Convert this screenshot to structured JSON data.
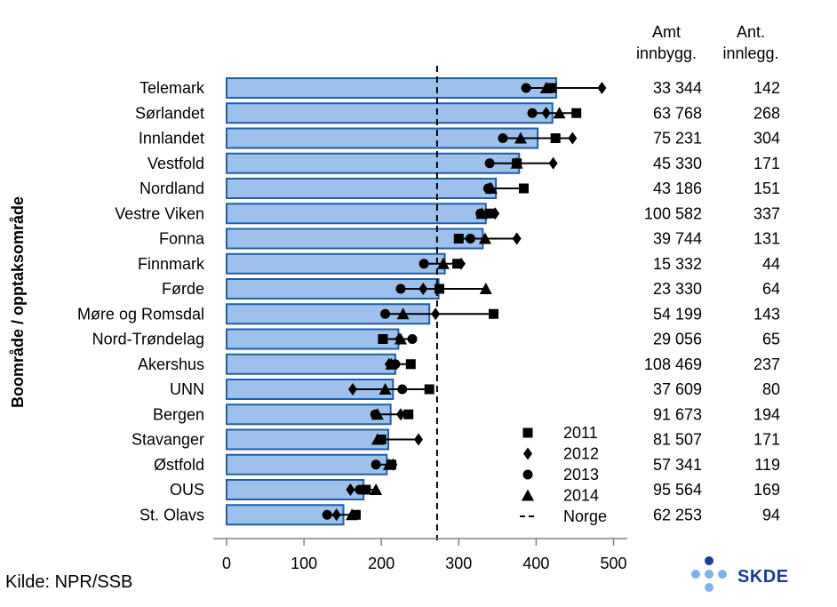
{
  "chart_data": {
    "type": "bar",
    "ylabel": "Boområde / opptaksområde",
    "xlim": [
      0,
      500
    ],
    "xticks": [
      0,
      100,
      200,
      300,
      400,
      500
    ],
    "reference_line": {
      "name": "Norge",
      "value": 272,
      "style": "dashed"
    },
    "table_headers": [
      [
        "Amt",
        "innbygg."
      ],
      [
        "Ant.",
        "innlegg."
      ]
    ],
    "categories": [
      "Telemark",
      "Sørlandet",
      "Innlandet",
      "Vestfold",
      "Nordland",
      "Vestre Viken",
      "Fonna",
      "Finnmark",
      "Førde",
      "Møre og Romsdal",
      "Nord-Trøndelag",
      "Akershus",
      "UNN",
      "Bergen",
      "Stavanger",
      "Østfold",
      "OUS",
      "St. Olavs"
    ],
    "values": [
      426,
      421,
      402,
      378,
      348,
      335,
      331,
      282,
      274,
      262,
      222,
      218,
      215,
      212,
      209,
      207,
      177,
      151
    ],
    "amt_innbygg": [
      "33 344",
      "63 768",
      "75 231",
      "45 330",
      "43 186",
      "100 582",
      "39 744",
      "15 332",
      "23 330",
      "54 199",
      "29 056",
      "108 469",
      "37 609",
      "91 673",
      "81 507",
      "57 341",
      "95 564",
      "62 253"
    ],
    "ant_innlegg": [
      "142",
      "268",
      "304",
      "171",
      "151",
      "337",
      "131",
      "44",
      "64",
      "143",
      "65",
      "237",
      "80",
      "194",
      "171",
      "119",
      "169",
      "94"
    ],
    "series": [
      {
        "name": "2011",
        "marker": "square",
        "values": [
          420,
          452,
          425,
          375,
          384,
          340,
          300,
          298,
          275,
          345,
          202,
          238,
          262,
          235,
          200,
          213,
          180,
          167
        ]
      },
      {
        "name": "2012",
        "marker": "diamond",
        "values": [
          485,
          413,
          447,
          422,
          340,
          347,
          375,
          303,
          254,
          270,
          223,
          210,
          163,
          225,
          248,
          215,
          160,
          142
        ]
      },
      {
        "name": "2013",
        "marker": "circle",
        "values": [
          387,
          395,
          357,
          340,
          338,
          328,
          315,
          255,
          225,
          205,
          240,
          218,
          227,
          192,
          198,
          193,
          172,
          130
        ]
      },
      {
        "name": "2014",
        "marker": "triangle",
        "values": [
          413,
          430,
          380,
          375,
          342,
          330,
          334,
          280,
          335,
          228,
          225,
          213,
          205,
          195,
          195,
          210,
          193,
          162
        ]
      }
    ],
    "colors": {
      "bar_fill": "#9dc1ea",
      "bar_stroke": "#1f5fa8",
      "marker": "#000000"
    }
  },
  "source": "Kilde: NPR/SSB",
  "logo": {
    "text": "SKDE",
    "dark_color": "#1a3d8f",
    "light_color": "#7fb2e6"
  }
}
